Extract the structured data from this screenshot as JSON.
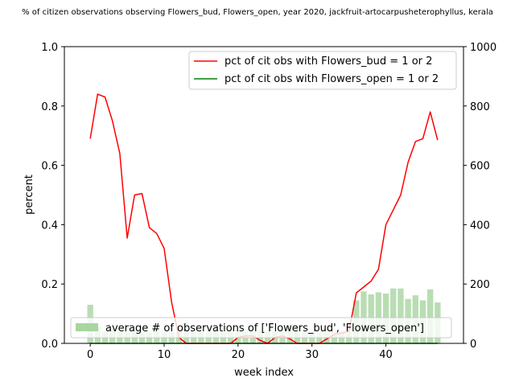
{
  "chart_data": {
    "type": "line",
    "title": "% of citizen observations observing Flowers_bud, Flowers_open, year 2020, jackfruit-artocarpusheterophyllus, kerala",
    "xlabel": "week index",
    "ylabel": "percent",
    "xlim": [
      -3.5,
      50.5
    ],
    "ylim": [
      0,
      1.0
    ],
    "y2lim": [
      0,
      1000
    ],
    "x_ticks": [
      0,
      10,
      20,
      30,
      40
    ],
    "y_ticks": [
      0.0,
      0.2,
      0.4,
      0.6,
      0.8,
      1.0
    ],
    "y2_ticks": [
      0,
      200,
      400,
      600,
      800,
      1000
    ],
    "x_tick_labels": [
      "0",
      "10",
      "20",
      "30",
      "40"
    ],
    "y_tick_labels": [
      "0.0",
      "0.2",
      "0.4",
      "0.6",
      "0.8",
      "1.0"
    ],
    "y2_tick_labels": [
      "0",
      "200",
      "400",
      "600",
      "800",
      "1000"
    ],
    "x": [
      0,
      1,
      2,
      3,
      4,
      5,
      6,
      7,
      8,
      9,
      10,
      11,
      12,
      13,
      14,
      15,
      16,
      17,
      18,
      19,
      20,
      21,
      22,
      23,
      24,
      25,
      26,
      27,
      28,
      29,
      30,
      31,
      32,
      33,
      34,
      35,
      36,
      37,
      38,
      39,
      40,
      41,
      42,
      43,
      44,
      45,
      46,
      47
    ],
    "series": [
      {
        "name": "pct of cit obs with Flowers_bud = 1 or 2",
        "color": "#ff0000",
        "values": [
          0.69,
          0.84,
          0.83,
          0.75,
          0.64,
          0.355,
          0.5,
          0.505,
          0.39,
          0.37,
          0.32,
          0.14,
          0.02,
          0.0,
          0.0,
          0.0,
          0.0,
          0.0,
          0.0,
          0.0,
          0.02,
          0.025,
          0.025,
          0.01,
          0.0,
          0.02,
          0.025,
          0.015,
          0.0,
          0.0,
          0.0,
          0.0,
          0.015,
          0.03,
          0.035,
          0.04,
          0.17,
          0.19,
          0.21,
          0.25,
          0.4,
          0.45,
          0.5,
          0.61,
          0.68,
          0.69,
          0.78,
          0.685
        ]
      },
      {
        "name": "pct of cit obs with Flowers_open = 1 or 2",
        "color": "#008000",
        "values": [
          0,
          0,
          0,
          0,
          0,
          0,
          0,
          0,
          0,
          0,
          0,
          0,
          0,
          0,
          0,
          0,
          0,
          0,
          0,
          0,
          0,
          0,
          0,
          0,
          0,
          0,
          0,
          0,
          0,
          0,
          0,
          0,
          0,
          0,
          0,
          0,
          0,
          0,
          0,
          0,
          0,
          0,
          0,
          0,
          0,
          0,
          0,
          0
        ]
      }
    ],
    "bars": {
      "name": "average # of observations of ['Flowers_bud', 'Flowers_open']",
      "color": "#a8d5a0",
      "values": [
        130,
        55,
        40,
        40,
        40,
        40,
        40,
        40,
        40,
        40,
        40,
        40,
        40,
        40,
        40,
        40,
        40,
        40,
        40,
        40,
        40,
        40,
        40,
        40,
        40,
        40,
        40,
        40,
        40,
        40,
        40,
        40,
        40,
        40,
        40,
        40,
        145,
        175,
        165,
        172,
        168,
        185,
        185,
        150,
        162,
        145,
        182,
        138
      ]
    },
    "legend": {
      "upper_position": "top-right",
      "lower_position": "bottom-right"
    }
  }
}
